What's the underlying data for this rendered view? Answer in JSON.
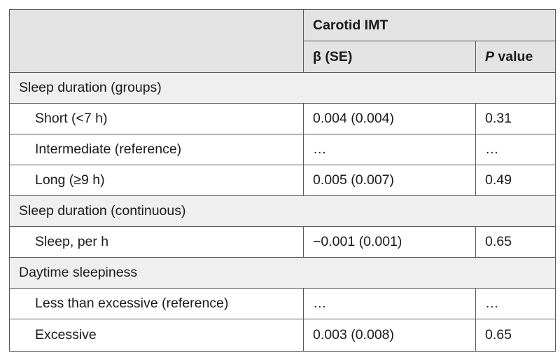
{
  "table": {
    "header": {
      "group_label": "Carotid IMT",
      "col_beta": "β (SE)",
      "col_p_italic": "P",
      "col_p_rest": " value"
    },
    "sections": [
      {
        "title": "Sleep duration (groups)",
        "rows": [
          {
            "label": "Short (<7 h)",
            "beta": "0.004 (0.004)",
            "p": "0.31"
          },
          {
            "label": "Intermediate (reference)",
            "beta": "…",
            "p": "…"
          },
          {
            "label": "Long (≥9 h)",
            "beta": "0.005 (0.007)",
            "p": "0.49"
          }
        ]
      },
      {
        "title": "Sleep duration (continuous)",
        "rows": [
          {
            "label": "Sleep, per h",
            "beta": "−0.001 (0.001)",
            "p": "0.65"
          }
        ]
      },
      {
        "title": "Daytime sleepiness",
        "rows": [
          {
            "label": "Less than excessive (reference)",
            "beta": "…",
            "p": "…"
          },
          {
            "label": "Excessive",
            "beta": "0.003 (0.008)",
            "p": "0.65"
          }
        ]
      }
    ]
  }
}
